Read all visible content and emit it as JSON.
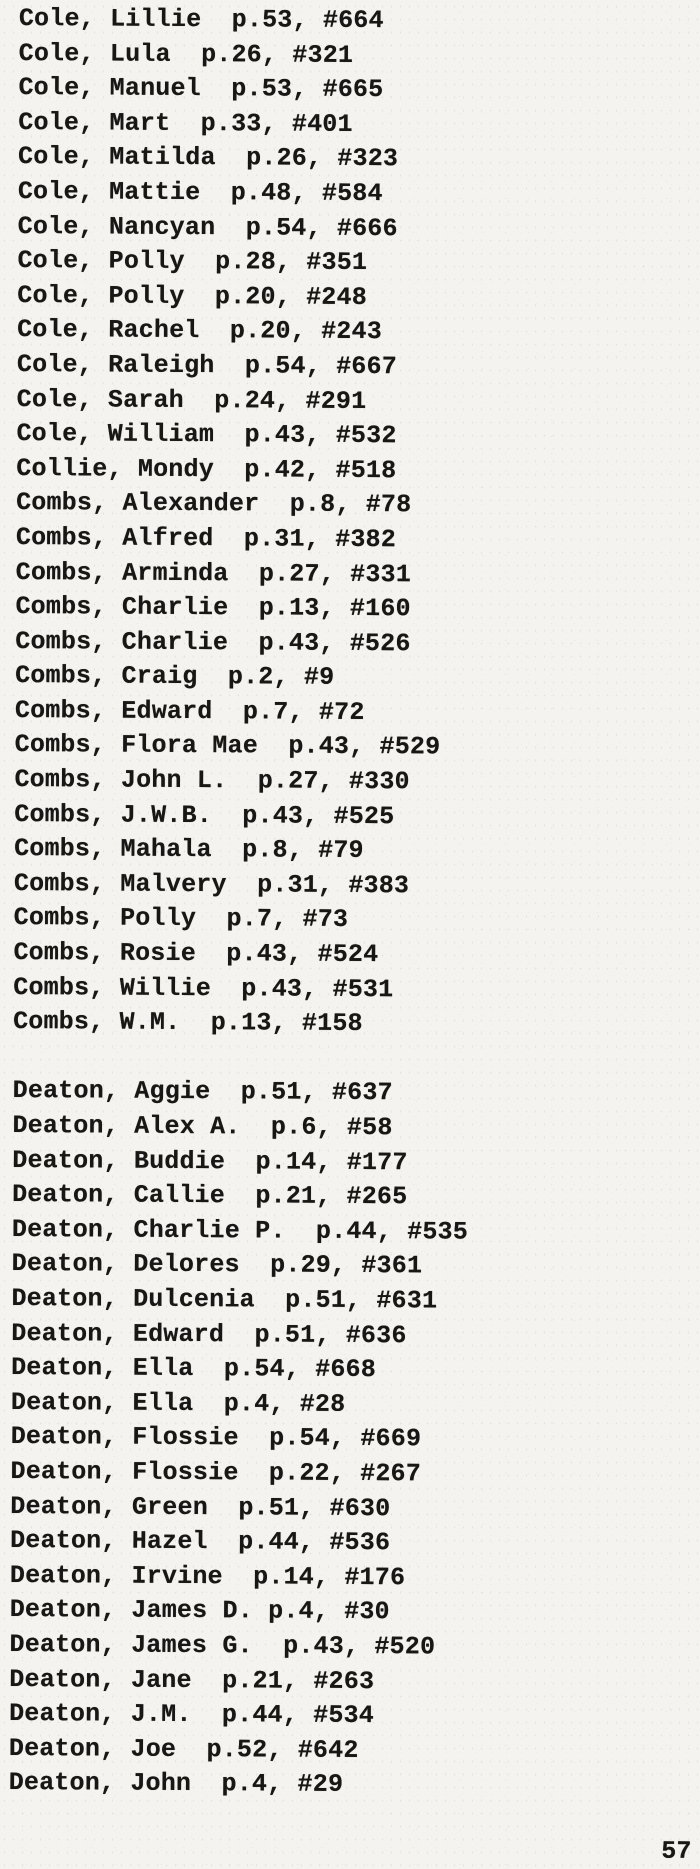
{
  "page_number": "57",
  "index_groups": [
    {
      "name": "cole-collie-combs",
      "entries": [
        {
          "name": "Cole, Lillie",
          "page": 53,
          "entry": 664,
          "text": "Cole, Lillie  p.53, #664"
        },
        {
          "name": "Cole, Lula",
          "page": 26,
          "entry": 321,
          "text": "Cole, Lula  p.26, #321"
        },
        {
          "name": "Cole, Manuel",
          "page": 53,
          "entry": 665,
          "text": "Cole, Manuel  p.53, #665"
        },
        {
          "name": "Cole, Mart",
          "page": 33,
          "entry": 401,
          "text": "Cole, Mart  p.33, #401"
        },
        {
          "name": "Cole, Matilda",
          "page": 26,
          "entry": 323,
          "text": "Cole, Matilda  p.26, #323"
        },
        {
          "name": "Cole, Mattie",
          "page": 48,
          "entry": 584,
          "text": "Cole, Mattie  p.48, #584"
        },
        {
          "name": "Cole, Nancyan",
          "page": 54,
          "entry": 666,
          "text": "Cole, Nancyan  p.54, #666"
        },
        {
          "name": "Cole, Polly",
          "page": 28,
          "entry": 351,
          "text": "Cole, Polly  p.28, #351"
        },
        {
          "name": "Cole, Polly",
          "page": 20,
          "entry": 248,
          "text": "Cole, Polly  p.20, #248"
        },
        {
          "name": "Cole, Rachel",
          "page": 20,
          "entry": 243,
          "text": "Cole, Rachel  p.20, #243"
        },
        {
          "name": "Cole, Raleigh",
          "page": 54,
          "entry": 667,
          "text": "Cole, Raleigh  p.54, #667"
        },
        {
          "name": "Cole, Sarah",
          "page": 24,
          "entry": 291,
          "text": "Cole, Sarah  p.24, #291"
        },
        {
          "name": "Cole, William",
          "page": 43,
          "entry": 532,
          "text": "Cole, William  p.43, #532"
        },
        {
          "name": "Collie, Mondy",
          "page": 42,
          "entry": 518,
          "text": "Collie, Mondy  p.42, #518"
        },
        {
          "name": "Combs, Alexander",
          "page": 8,
          "entry": 78,
          "text": "Combs, Alexander  p.8, #78"
        },
        {
          "name": "Combs, Alfred",
          "page": 31,
          "entry": 382,
          "text": "Combs, Alfred  p.31, #382"
        },
        {
          "name": "Combs, Arminda",
          "page": 27,
          "entry": 331,
          "text": "Combs, Arminda  p.27, #331"
        },
        {
          "name": "Combs, Charlie",
          "page": 13,
          "entry": 160,
          "text": "Combs, Charlie  p.13, #160"
        },
        {
          "name": "Combs, Charlie",
          "page": 43,
          "entry": 526,
          "text": "Combs, Charlie  p.43, #526"
        },
        {
          "name": "Combs, Craig",
          "page": 2,
          "entry": 9,
          "text": "Combs, Craig  p.2, #9"
        },
        {
          "name": "Combs, Edward",
          "page": 7,
          "entry": 72,
          "text": "Combs, Edward  p.7, #72"
        },
        {
          "name": "Combs, Flora Mae",
          "page": 43,
          "entry": 529,
          "text": "Combs, Flora Mae  p.43, #529"
        },
        {
          "name": "Combs, John L.",
          "page": 27,
          "entry": 330,
          "text": "Combs, John L.  p.27, #330"
        },
        {
          "name": "Combs, J.W.B.",
          "page": 43,
          "entry": 525,
          "text": "Combs, J.W.B.  p.43, #525"
        },
        {
          "name": "Combs, Mahala",
          "page": 8,
          "entry": 79,
          "text": "Combs, Mahala  p.8, #79"
        },
        {
          "name": "Combs, Malvery",
          "page": 31,
          "entry": 383,
          "text": "Combs, Malvery  p.31, #383"
        },
        {
          "name": "Combs, Polly",
          "page": 7,
          "entry": 73,
          "text": "Combs, Polly  p.7, #73"
        },
        {
          "name": "Combs, Rosie",
          "page": 43,
          "entry": 524,
          "text": "Combs, Rosie  p.43, #524"
        },
        {
          "name": "Combs, Willie",
          "page": 43,
          "entry": 531,
          "text": "Combs, Willie  p.43, #531"
        },
        {
          "name": "Combs, W.M.",
          "page": 13,
          "entry": 158,
          "text": "Combs, W.M.  p.13, #158"
        }
      ]
    },
    {
      "name": "deaton",
      "entries": [
        {
          "name": "Deaton, Aggie",
          "page": 51,
          "entry": 637,
          "text": "Deaton, Aggie  p.51, #637"
        },
        {
          "name": "Deaton, Alex A.",
          "page": 6,
          "entry": 58,
          "text": "Deaton, Alex A.  p.6, #58"
        },
        {
          "name": "Deaton, Buddie",
          "page": 14,
          "entry": 177,
          "text": "Deaton, Buddie  p.14, #177"
        },
        {
          "name": "Deaton, Callie",
          "page": 21,
          "entry": 265,
          "text": "Deaton, Callie  p.21, #265"
        },
        {
          "name": "Deaton, Charlie P.",
          "page": 44,
          "entry": 535,
          "text": "Deaton, Charlie P.  p.44, #535"
        },
        {
          "name": "Deaton, Delores",
          "page": 29,
          "entry": 361,
          "text": "Deaton, Delores  p.29, #361"
        },
        {
          "name": "Deaton, Dulcenia",
          "page": 51,
          "entry": 631,
          "text": "Deaton, Dulcenia  p.51, #631"
        },
        {
          "name": "Deaton, Edward",
          "page": 51,
          "entry": 636,
          "text": "Deaton, Edward  p.51, #636"
        },
        {
          "name": "Deaton, Ella",
          "page": 54,
          "entry": 668,
          "text": "Deaton, Ella  p.54, #668"
        },
        {
          "name": "Deaton, Ella",
          "page": 4,
          "entry": 28,
          "text": "Deaton, Ella  p.4, #28"
        },
        {
          "name": "Deaton, Flossie",
          "page": 54,
          "entry": 669,
          "text": "Deaton, Flossie  p.54, #669"
        },
        {
          "name": "Deaton, Flossie",
          "page": 22,
          "entry": 267,
          "text": "Deaton, Flossie  p.22, #267"
        },
        {
          "name": "Deaton, Green",
          "page": 51,
          "entry": 630,
          "text": "Deaton, Green  p.51, #630"
        },
        {
          "name": "Deaton, Hazel",
          "page": 44,
          "entry": 536,
          "text": "Deaton, Hazel  p.44, #536"
        },
        {
          "name": "Deaton, Irvine",
          "page": 14,
          "entry": 176,
          "text": "Deaton, Irvine  p.14, #176"
        },
        {
          "name": "Deaton, James D.",
          "page": 4,
          "entry": 30,
          "text": "Deaton, James D. p.4, #30"
        },
        {
          "name": "Deaton, James G.",
          "page": 43,
          "entry": 520,
          "text": "Deaton, James G.  p.43, #520"
        },
        {
          "name": "Deaton, Jane",
          "page": 21,
          "entry": 263,
          "text": "Deaton, Jane  p.21, #263"
        },
        {
          "name": "Deaton, J.M.",
          "page": 44,
          "entry": 534,
          "text": "Deaton, J.M.  p.44, #534"
        },
        {
          "name": "Deaton, Joe",
          "page": 52,
          "entry": 642,
          "text": "Deaton, Joe  p.52, #642"
        },
        {
          "name": "Deaton, John",
          "page": 4,
          "entry": 29,
          "text": "Deaton, John  p.4, #29"
        }
      ]
    }
  ]
}
